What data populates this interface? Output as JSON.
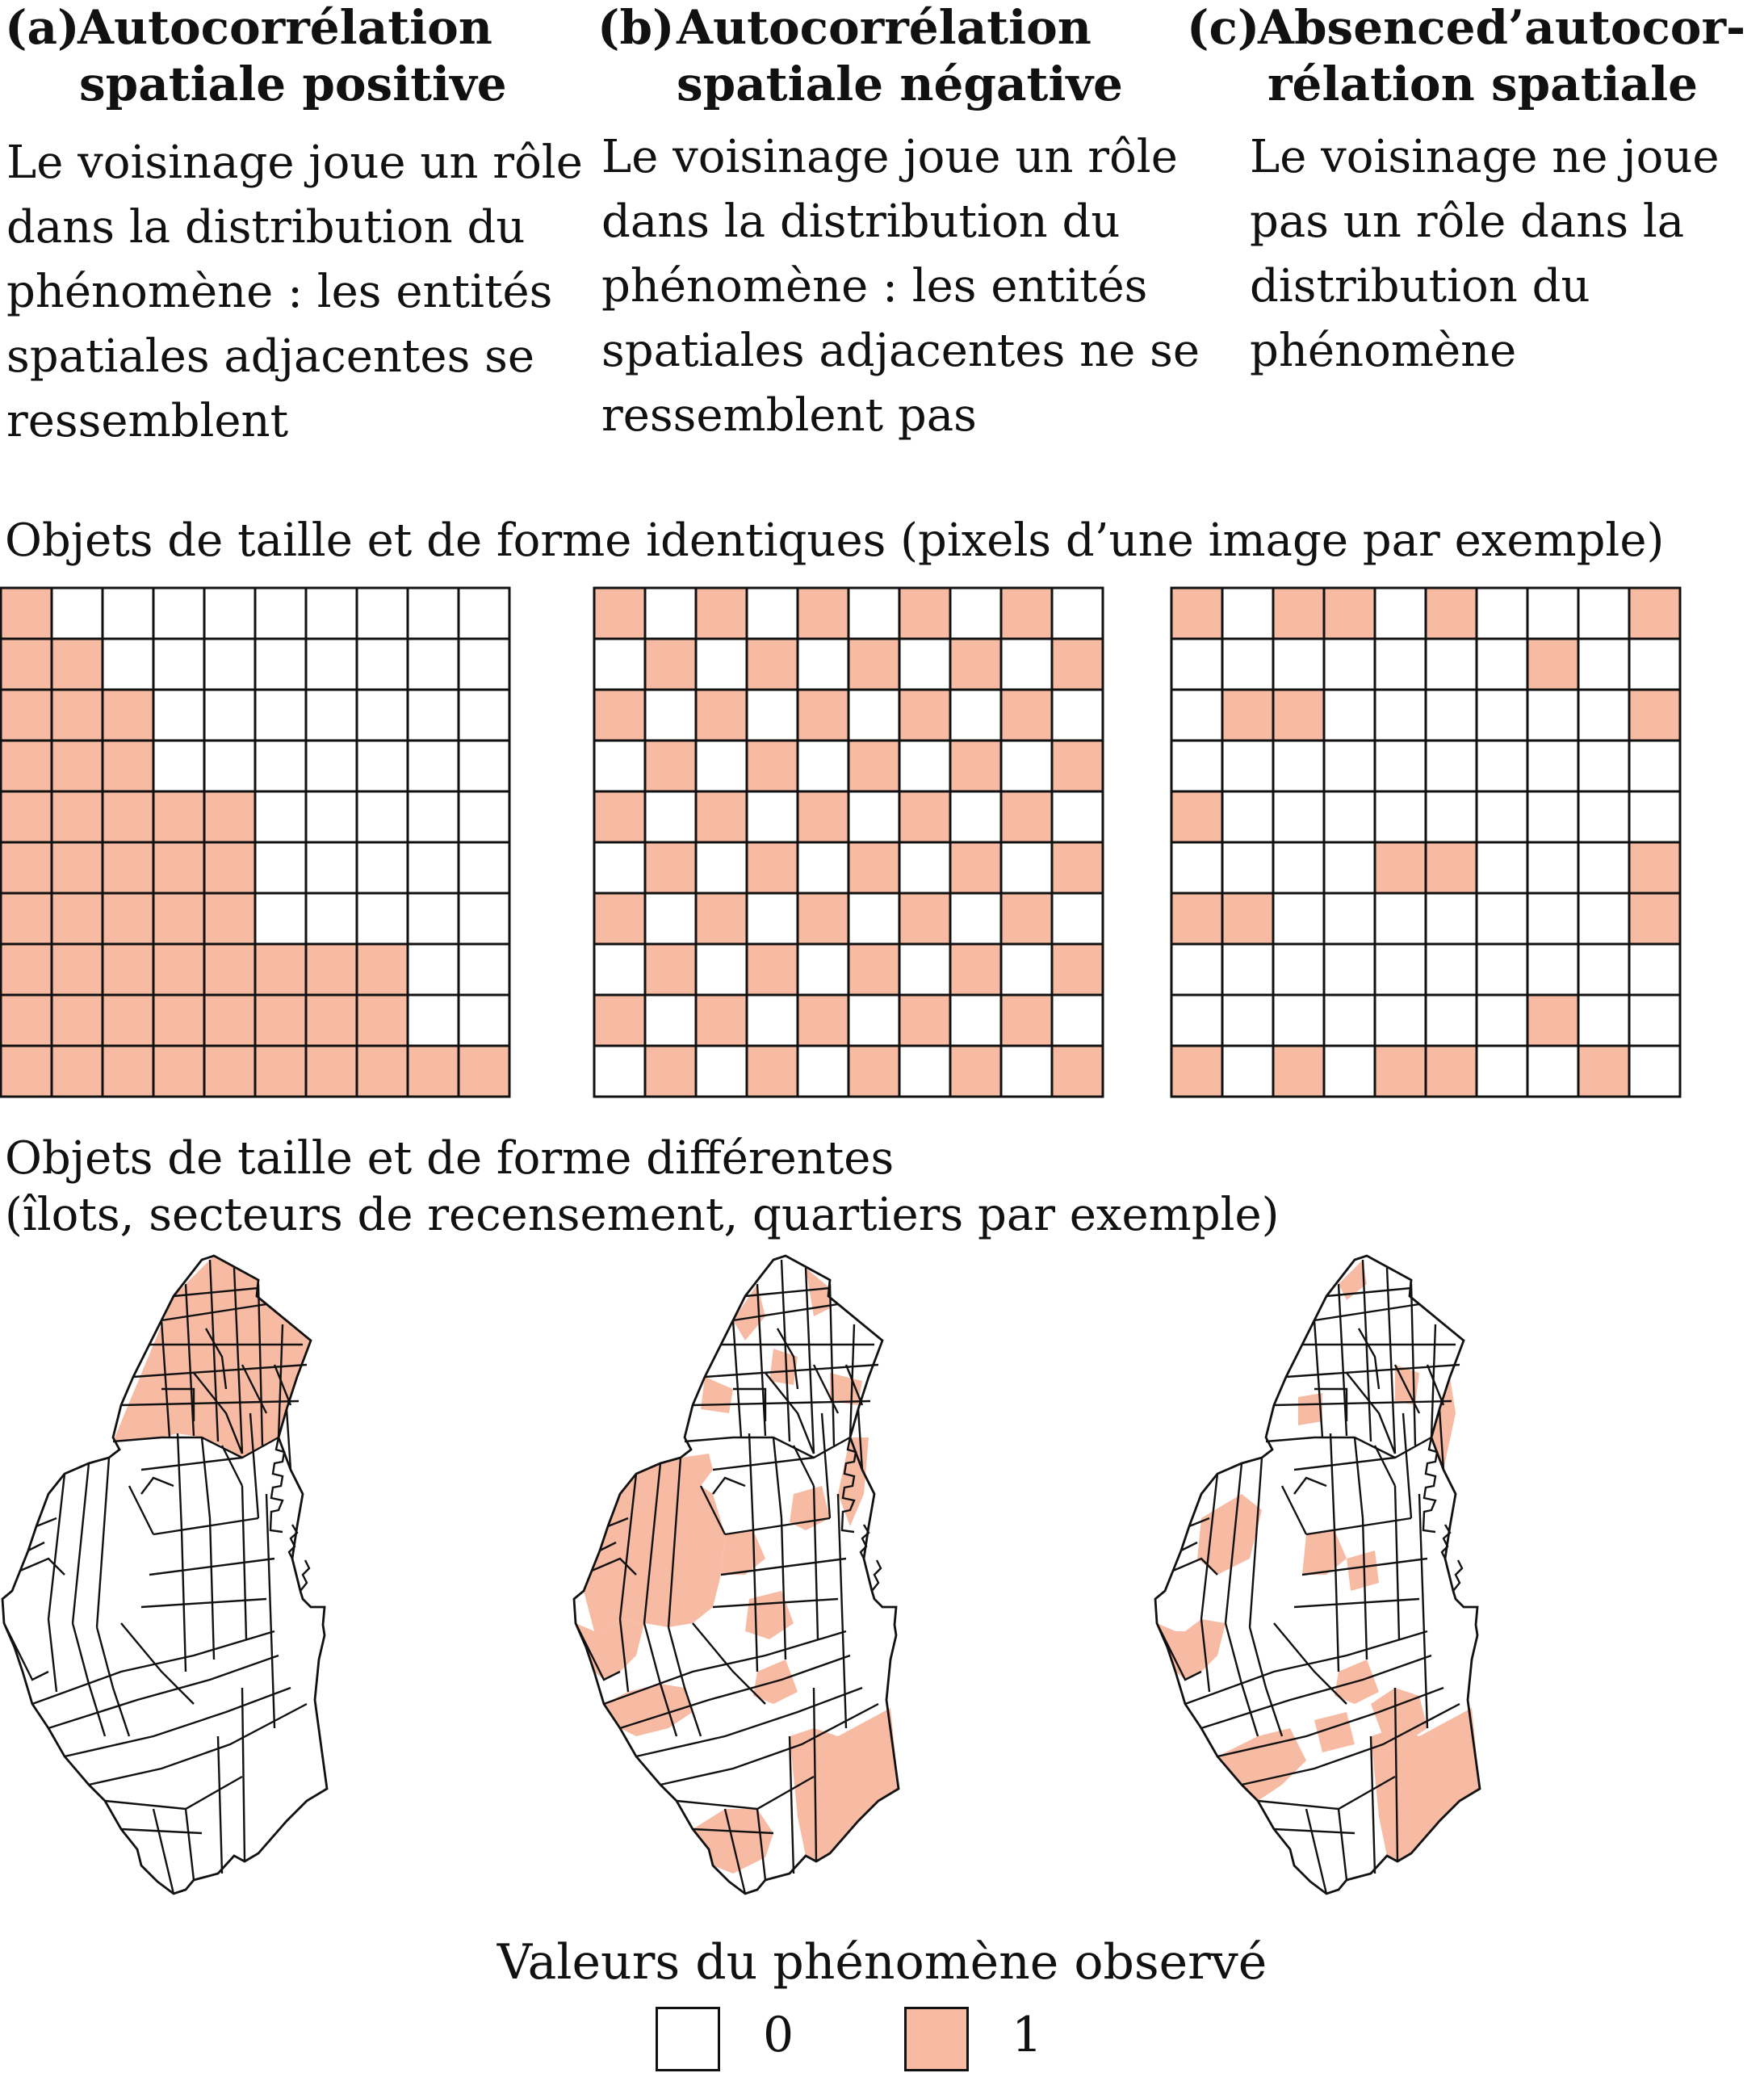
{
  "panels": [
    {
      "tag": "(a)",
      "title_line1": "Autocorrélation",
      "title_line2": "spatiale positive",
      "description": [
        "Le voisinage joue un rôle",
        "dans la distribution du",
        "phénomène : les entités",
        "spatiales adjacentes se",
        "ressemblent"
      ]
    },
    {
      "tag": "(b)",
      "title_line1": "Autocorrélation",
      "title_line2": "spatiale négative",
      "description": [
        "Le voisinage joue un rôle",
        "dans la distribution du",
        "phénomène : les entités",
        "spatiales adjacentes ne se",
        "ressemblent pas"
      ]
    },
    {
      "tag": "(c)",
      "title_line1": "Absenced’autocor-",
      "title_line2": "rélation spatiale",
      "description": [
        "Le voisinage ne joue",
        "pas un rôle dans la",
        "distribution du",
        "phénomène"
      ]
    }
  ],
  "section_grids_title": "Objets de taille et de forme identiques (pixels d’une image par exemple)",
  "section_maps_title_line1": "Objets de taille et de forme différentes",
  "section_maps_title_line2": "(îlots, secteurs de recensement, quartiers par exemple)",
  "grids": [
    {
      "panel": "a",
      "cells": [
        "1000000000",
        "1100000000",
        "1110000000",
        "1110000000",
        "1111100000",
        "1111100000",
        "1111100000",
        "1111111100",
        "1111111100",
        "1111111111"
      ]
    },
    {
      "panel": "b",
      "cells": [
        "1010101010",
        "0101010101",
        "1010101010",
        "0101010101",
        "1010101010",
        "0101010101",
        "1010101010",
        "0101010101",
        "1010101010",
        "0101010101"
      ]
    },
    {
      "panel": "c",
      "cells": [
        "1011010001",
        "0000000100",
        "0110000001",
        "0000000000",
        "1000000000",
        "0000110001",
        "1100000001",
        "0000000000",
        "0000000100",
        "1010110010"
      ]
    }
  ],
  "legend": {
    "title": "Valeurs du phénomène observé",
    "items": [
      {
        "value": "0",
        "color": "#ffffff"
      },
      {
        "value": "1",
        "color": "#f7bba4"
      }
    ]
  },
  "colors": {
    "fill_one": "#f7bba4",
    "fill_zero": "#ffffff",
    "stroke": "#111111"
  }
}
